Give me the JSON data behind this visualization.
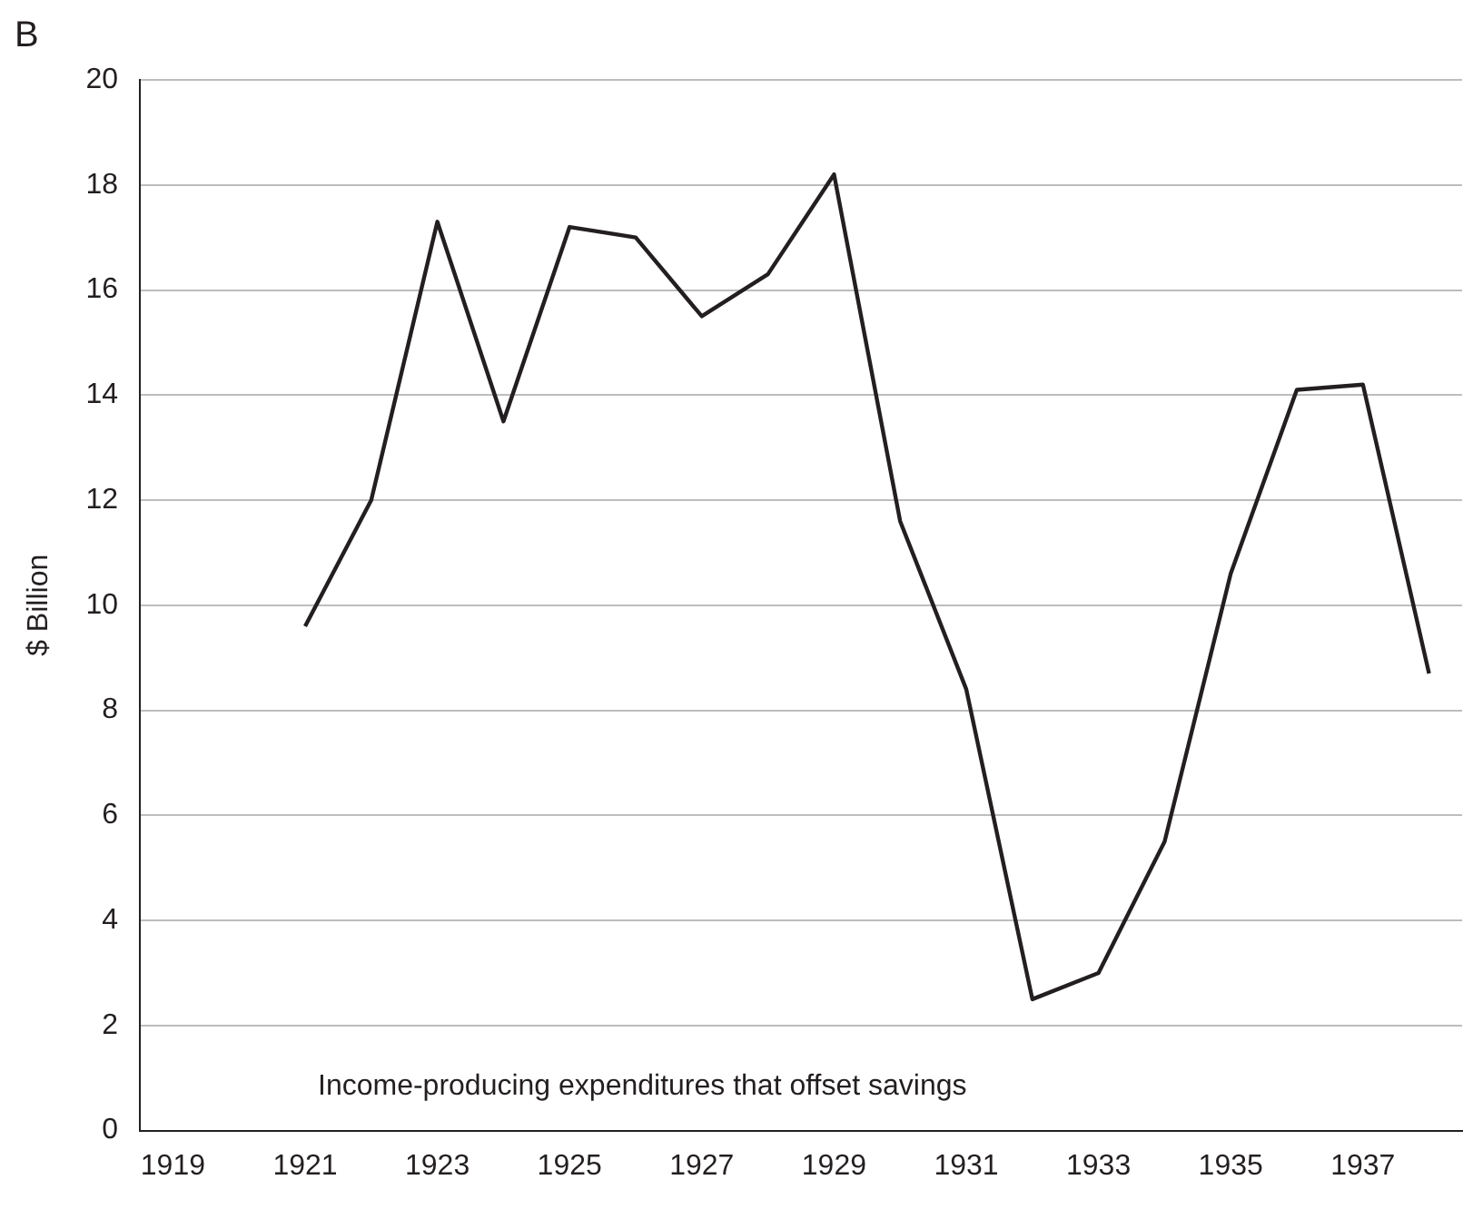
{
  "chart_data": {
    "type": "line",
    "title": "B",
    "ylabel": "$ Billion",
    "annotations": [
      "Income-producing expenditures that offset savings"
    ],
    "categories": [
      "1919",
      null,
      "1921",
      null,
      "1923",
      null,
      "1925",
      null,
      "1927",
      null,
      "1929",
      null,
      "1931",
      null,
      "1933",
      null,
      "1935",
      null,
      "1937",
      null
    ],
    "series": [
      {
        "color": "#231f20",
        "values": [
          null,
          null,
          9.6,
          12.0,
          17.3,
          13.5,
          17.2,
          17.0,
          15.5,
          16.3,
          18.2,
          11.6,
          8.4,
          2.5,
          3.0,
          5.5,
          10.6,
          14.1,
          14.2,
          8.7
        ]
      }
    ],
    "ylim": [
      0,
      20
    ],
    "yticks": [
      0,
      2,
      4,
      6,
      8,
      10,
      12,
      14,
      16,
      18,
      20
    ],
    "grid": "y",
    "legend": false,
    "marker": "none",
    "line_style": "solid"
  }
}
